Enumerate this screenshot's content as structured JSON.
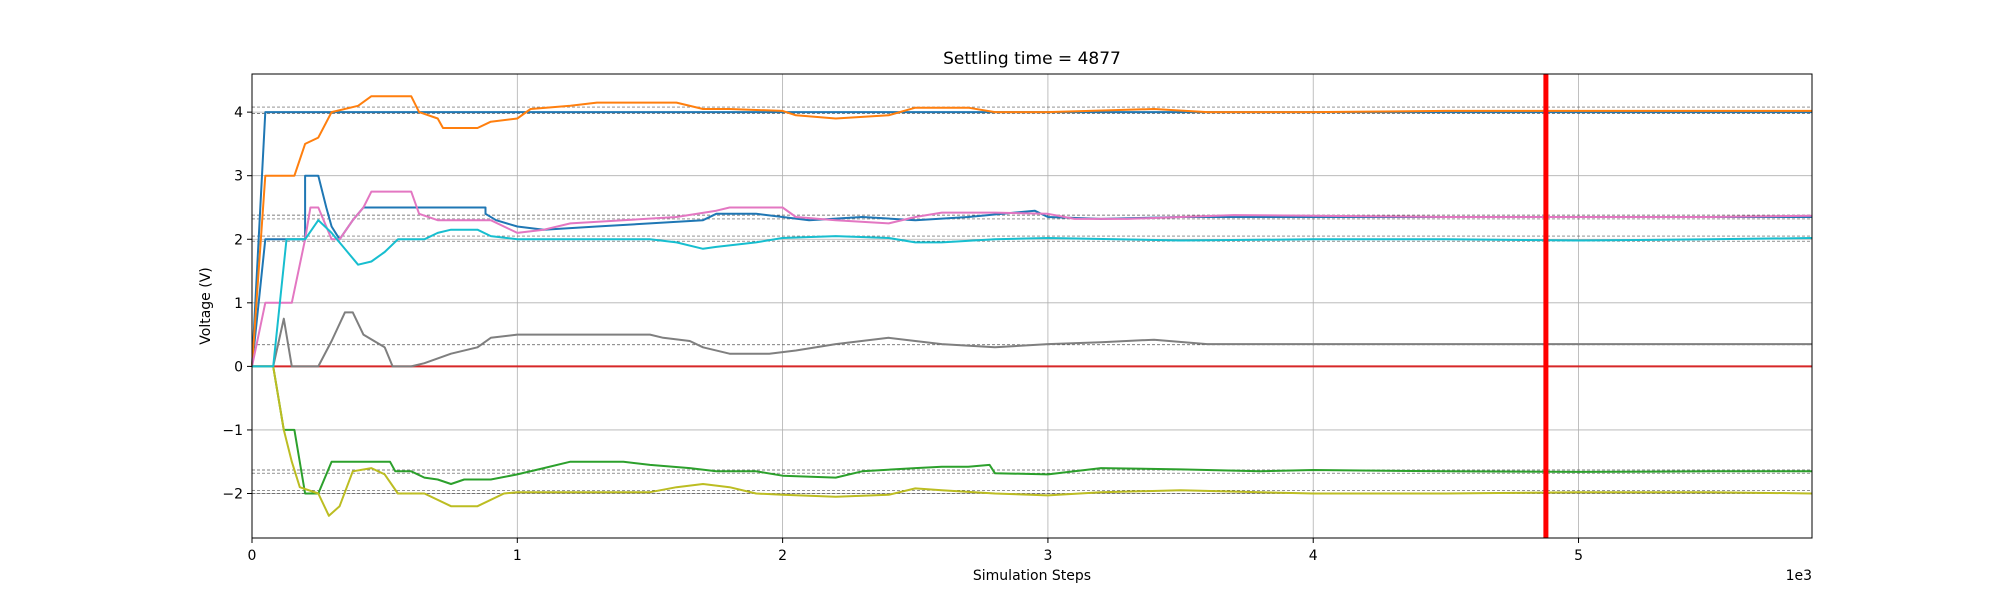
{
  "chart_data": {
    "type": "line",
    "title": "Settling time = 4877",
    "xlabel": "Simulation Steps",
    "ylabel": "Voltage (V)",
    "x_offset_label": "1e3",
    "xlim": [
      0,
      5880
    ],
    "ylim": [
      -2.7,
      4.6
    ],
    "x_ticks": [
      0,
      1000,
      2000,
      3000,
      4000,
      5000
    ],
    "x_tick_labels": [
      "0",
      "1",
      "2",
      "3",
      "4",
      "5"
    ],
    "y_ticks": [
      -2,
      -1,
      0,
      1,
      2,
      3,
      4
    ],
    "y_tick_labels": [
      "−2",
      "−1",
      "0",
      "1",
      "2",
      "3",
      "4"
    ],
    "grid": true,
    "settling_marker": {
      "x": 4877,
      "color": "#ff0000"
    },
    "reference_lines": [
      4.08,
      3.98,
      2.38,
      2.32,
      2.05,
      1.97,
      0.34,
      -1.63,
      -1.68,
      -1.95,
      -2.0
    ],
    "series": [
      {
        "color": "#1f77b4",
        "points": [
          [
            0,
            0
          ],
          [
            50,
            4
          ],
          [
            5880,
            4
          ]
        ]
      },
      {
        "color": "#1f77b4",
        "points": [
          [
            0,
            0
          ],
          [
            50,
            2
          ],
          [
            200,
            2
          ],
          [
            200,
            3
          ],
          [
            250,
            3
          ],
          [
            280,
            2.5
          ],
          [
            300,
            2.2
          ],
          [
            330,
            2
          ],
          [
            380,
            2.3
          ],
          [
            420,
            2.5
          ],
          [
            880,
            2.5
          ],
          [
            880,
            2.4
          ],
          [
            920,
            2.3
          ],
          [
            1000,
            2.2
          ],
          [
            1100,
            2.15
          ],
          [
            1300,
            2.2
          ],
          [
            1500,
            2.25
          ],
          [
            1700,
            2.3
          ],
          [
            1750,
            2.4
          ],
          [
            1900,
            2.4
          ],
          [
            2000,
            2.35
          ],
          [
            2100,
            2.3
          ],
          [
            2300,
            2.35
          ],
          [
            2500,
            2.3
          ],
          [
            2700,
            2.35
          ],
          [
            2950,
            2.45
          ],
          [
            3000,
            2.35
          ],
          [
            3200,
            2.32
          ],
          [
            3500,
            2.35
          ],
          [
            4000,
            2.35
          ],
          [
            4500,
            2.35
          ],
          [
            5000,
            2.35
          ],
          [
            5500,
            2.35
          ],
          [
            5880,
            2.35
          ]
        ]
      },
      {
        "color": "#ff7f0e",
        "points": [
          [
            0,
            0
          ],
          [
            50,
            3
          ],
          [
            160,
            3
          ],
          [
            200,
            3.5
          ],
          [
            250,
            3.6
          ],
          [
            300,
            4
          ],
          [
            400,
            4.1
          ],
          [
            450,
            4.25
          ],
          [
            600,
            4.25
          ],
          [
            630,
            4
          ],
          [
            700,
            3.9
          ],
          [
            720,
            3.75
          ],
          [
            850,
            3.75
          ],
          [
            900,
            3.85
          ],
          [
            1000,
            3.9
          ],
          [
            1050,
            4.05
          ],
          [
            1200,
            4.1
          ],
          [
            1300,
            4.15
          ],
          [
            1600,
            4.15
          ],
          [
            1700,
            4.05
          ],
          [
            1800,
            4.05
          ],
          [
            2000,
            4.02
          ],
          [
            2050,
            3.95
          ],
          [
            2200,
            3.9
          ],
          [
            2400,
            3.95
          ],
          [
            2500,
            4.07
          ],
          [
            2700,
            4.07
          ],
          [
            2800,
            4.0
          ],
          [
            3000,
            4.0
          ],
          [
            3400,
            4.05
          ],
          [
            3600,
            4.0
          ],
          [
            4000,
            4.0
          ],
          [
            4500,
            4.02
          ],
          [
            5000,
            4.02
          ],
          [
            5880,
            4.02
          ]
        ]
      },
      {
        "color": "#2ca02c",
        "points": [
          [
            0,
            0
          ],
          [
            80,
            0
          ],
          [
            120,
            -1
          ],
          [
            160,
            -1
          ],
          [
            200,
            -2
          ],
          [
            250,
            -2
          ],
          [
            300,
            -1.5
          ],
          [
            520,
            -1.5
          ],
          [
            540,
            -1.65
          ],
          [
            600,
            -1.65
          ],
          [
            650,
            -1.75
          ],
          [
            700,
            -1.78
          ],
          [
            750,
            -1.85
          ],
          [
            800,
            -1.78
          ],
          [
            900,
            -1.78
          ],
          [
            1000,
            -1.7
          ],
          [
            1100,
            -1.6
          ],
          [
            1200,
            -1.5
          ],
          [
            1400,
            -1.5
          ],
          [
            1500,
            -1.55
          ],
          [
            1650,
            -1.6
          ],
          [
            1750,
            -1.65
          ],
          [
            1900,
            -1.65
          ],
          [
            2000,
            -1.72
          ],
          [
            2200,
            -1.75
          ],
          [
            2300,
            -1.65
          ],
          [
            2500,
            -1.6
          ],
          [
            2600,
            -1.58
          ],
          [
            2700,
            -1.58
          ],
          [
            2780,
            -1.55
          ],
          [
            2800,
            -1.68
          ],
          [
            3000,
            -1.7
          ],
          [
            3200,
            -1.6
          ],
          [
            3500,
            -1.62
          ],
          [
            3800,
            -1.65
          ],
          [
            4000,
            -1.63
          ],
          [
            4500,
            -1.65
          ],
          [
            5000,
            -1.66
          ],
          [
            5500,
            -1.65
          ],
          [
            5880,
            -1.65
          ]
        ]
      },
      {
        "color": "#d62728",
        "points": [
          [
            0,
            0
          ],
          [
            5880,
            0
          ]
        ]
      },
      {
        "color": "#e377c2",
        "points": [
          [
            0,
            0
          ],
          [
            50,
            1
          ],
          [
            150,
            1
          ],
          [
            200,
            2
          ],
          [
            220,
            2.5
          ],
          [
            250,
            2.5
          ],
          [
            300,
            2
          ],
          [
            330,
            2
          ],
          [
            380,
            2.3
          ],
          [
            420,
            2.5
          ],
          [
            450,
            2.75
          ],
          [
            600,
            2.75
          ],
          [
            630,
            2.4
          ],
          [
            700,
            2.3
          ],
          [
            900,
            2.3
          ],
          [
            1000,
            2.1
          ],
          [
            1100,
            2.15
          ],
          [
            1200,
            2.25
          ],
          [
            1400,
            2.3
          ],
          [
            1600,
            2.35
          ],
          [
            1750,
            2.45
          ],
          [
            1800,
            2.5
          ],
          [
            2000,
            2.5
          ],
          [
            2050,
            2.35
          ],
          [
            2200,
            2.3
          ],
          [
            2400,
            2.25
          ],
          [
            2500,
            2.35
          ],
          [
            2600,
            2.42
          ],
          [
            2800,
            2.42
          ],
          [
            3000,
            2.4
          ],
          [
            3100,
            2.32
          ],
          [
            3300,
            2.32
          ],
          [
            3500,
            2.35
          ],
          [
            3700,
            2.38
          ],
          [
            4000,
            2.37
          ],
          [
            4500,
            2.35
          ],
          [
            5000,
            2.35
          ],
          [
            5500,
            2.35
          ],
          [
            5880,
            2.37
          ]
        ]
      },
      {
        "color": "#7f7f7f",
        "points": [
          [
            0,
            0
          ],
          [
            80,
            0
          ],
          [
            120,
            0.75
          ],
          [
            150,
            0
          ],
          [
            250,
            0
          ],
          [
            300,
            0.4
          ],
          [
            350,
            0.85
          ],
          [
            380,
            0.85
          ],
          [
            420,
            0.5
          ],
          [
            500,
            0.3
          ],
          [
            530,
            0
          ],
          [
            600,
            0
          ],
          [
            650,
            0.05
          ],
          [
            750,
            0.2
          ],
          [
            850,
            0.3
          ],
          [
            900,
            0.45
          ],
          [
            1000,
            0.5
          ],
          [
            1500,
            0.5
          ],
          [
            1550,
            0.45
          ],
          [
            1650,
            0.4
          ],
          [
            1700,
            0.3
          ],
          [
            1800,
            0.2
          ],
          [
            1950,
            0.2
          ],
          [
            2050,
            0.25
          ],
          [
            2200,
            0.35
          ],
          [
            2400,
            0.45
          ],
          [
            2500,
            0.4
          ],
          [
            2600,
            0.35
          ],
          [
            2800,
            0.3
          ],
          [
            3000,
            0.35
          ],
          [
            3200,
            0.38
          ],
          [
            3400,
            0.42
          ],
          [
            3600,
            0.35
          ],
          [
            4000,
            0.35
          ],
          [
            4500,
            0.35
          ],
          [
            5000,
            0.35
          ],
          [
            5500,
            0.35
          ],
          [
            5880,
            0.35
          ]
        ]
      },
      {
        "color": "#bcbd22",
        "points": [
          [
            0,
            0
          ],
          [
            80,
            0
          ],
          [
            120,
            -1
          ],
          [
            150,
            -1.5
          ],
          [
            180,
            -1.9
          ],
          [
            250,
            -2
          ],
          [
            290,
            -2.35
          ],
          [
            330,
            -2.2
          ],
          [
            380,
            -1.65
          ],
          [
            450,
            -1.6
          ],
          [
            500,
            -1.7
          ],
          [
            550,
            -2
          ],
          [
            650,
            -2
          ],
          [
            750,
            -2.2
          ],
          [
            850,
            -2.2
          ],
          [
            950,
            -2
          ],
          [
            1000,
            -1.98
          ],
          [
            1500,
            -1.98
          ],
          [
            1600,
            -1.9
          ],
          [
            1700,
            -1.85
          ],
          [
            1800,
            -1.9
          ],
          [
            1900,
            -2.0
          ],
          [
            2000,
            -2.02
          ],
          [
            2200,
            -2.05
          ],
          [
            2400,
            -2.02
          ],
          [
            2500,
            -1.92
          ],
          [
            2600,
            -1.95
          ],
          [
            2800,
            -2.0
          ],
          [
            3000,
            -2.03
          ],
          [
            3200,
            -1.98
          ],
          [
            3500,
            -1.95
          ],
          [
            4000,
            -2.0
          ],
          [
            4500,
            -2.0
          ],
          [
            5000,
            -1.98
          ],
          [
            5500,
            -1.98
          ],
          [
            5880,
            -2.0
          ]
        ]
      },
      {
        "color": "#17becf",
        "points": [
          [
            0,
            0
          ],
          [
            80,
            0
          ],
          [
            130,
            2
          ],
          [
            200,
            2
          ],
          [
            250,
            2.3
          ],
          [
            300,
            2.1
          ],
          [
            360,
            1.8
          ],
          [
            400,
            1.6
          ],
          [
            450,
            1.65
          ],
          [
            500,
            1.8
          ],
          [
            550,
            2.0
          ],
          [
            650,
            2.0
          ],
          [
            700,
            2.1
          ],
          [
            750,
            2.15
          ],
          [
            850,
            2.15
          ],
          [
            900,
            2.05
          ],
          [
            1000,
            2.0
          ],
          [
            1500,
            2.0
          ],
          [
            1600,
            1.95
          ],
          [
            1700,
            1.85
          ],
          [
            1750,
            1.88
          ],
          [
            1900,
            1.95
          ],
          [
            2000,
            2.02
          ],
          [
            2200,
            2.05
          ],
          [
            2400,
            2.02
          ],
          [
            2500,
            1.95
          ],
          [
            2600,
            1.95
          ],
          [
            2800,
            2.0
          ],
          [
            3000,
            2.02
          ],
          [
            3500,
            1.98
          ],
          [
            4000,
            2.0
          ],
          [
            4500,
            2.0
          ],
          [
            5000,
            1.98
          ],
          [
            5500,
            2.0
          ],
          [
            5880,
            2.02
          ]
        ]
      }
    ]
  }
}
